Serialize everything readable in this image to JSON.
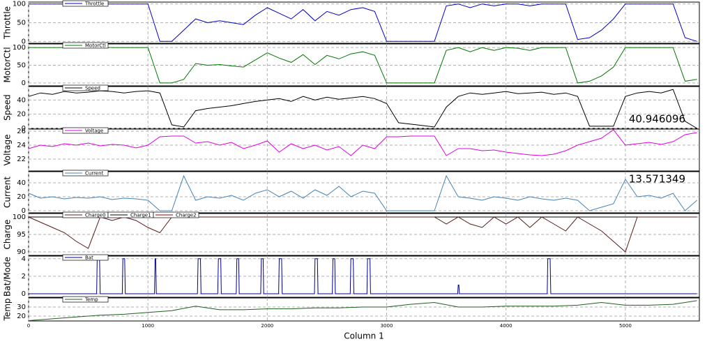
{
  "chart_data": [
    {
      "type": "line",
      "ylabel": "Throttle",
      "xlim": [
        0,
        5620
      ],
      "xticks": [
        0,
        1000,
        2000,
        3000,
        4000,
        5000
      ],
      "ylim": [
        -5,
        105
      ],
      "yticks": [
        0,
        50,
        100
      ],
      "grid": true,
      "x": [
        0,
        100,
        200,
        300,
        400,
        500,
        600,
        700,
        800,
        900,
        1000,
        1100,
        1200,
        1300,
        1400,
        1500,
        1600,
        1700,
        1800,
        1900,
        2000,
        2100,
        2200,
        2300,
        2400,
        2500,
        2600,
        2700,
        2800,
        2900,
        3000,
        3100,
        3200,
        3300,
        3400,
        3500,
        3600,
        3700,
        3800,
        3900,
        4000,
        4100,
        4200,
        4300,
        4400,
        4500,
        4600,
        4700,
        4800,
        4900,
        5000,
        5100,
        5200,
        5300,
        5400,
        5500,
        5600
      ],
      "series": [
        {
          "name": "Throttle",
          "color": "#0000cc",
          "values": [
            100,
            100,
            100,
            100,
            100,
            100,
            100,
            100,
            100,
            100,
            100,
            0,
            0,
            30,
            60,
            50,
            55,
            50,
            45,
            70,
            90,
            75,
            60,
            85,
            55,
            80,
            70,
            85,
            90,
            80,
            0,
            0,
            0,
            0,
            0,
            95,
            100,
            90,
            100,
            95,
            100,
            100,
            95,
            100,
            100,
            100,
            5,
            10,
            30,
            60,
            100,
            100,
            100,
            100,
            100,
            10,
            0
          ]
        }
      ]
    },
    {
      "type": "line",
      "ylabel": "MotorCtl",
      "xlim": [
        0,
        5620
      ],
      "xticks": [
        0,
        1000,
        2000,
        3000,
        4000,
        5000
      ],
      "ylim": [
        -8,
        110
      ],
      "yticks": [
        0,
        50,
        100
      ],
      "grid": true,
      "x": [
        0,
        100,
        200,
        300,
        400,
        500,
        600,
        700,
        800,
        900,
        1000,
        1100,
        1200,
        1300,
        1400,
        1500,
        1600,
        1700,
        1800,
        1900,
        2000,
        2100,
        2200,
        2300,
        2400,
        2500,
        2600,
        2700,
        2800,
        2900,
        3000,
        3100,
        3200,
        3300,
        3400,
        3500,
        3600,
        3700,
        3800,
        3900,
        4000,
        4100,
        4200,
        4300,
        4400,
        4500,
        4600,
        4700,
        4800,
        4900,
        5000,
        5100,
        5200,
        5300,
        5400,
        5500,
        5600
      ],
      "series": [
        {
          "name": "MotorCtl",
          "color": "#007700",
          "values": [
            100,
            100,
            100,
            100,
            100,
            100,
            100,
            100,
            100,
            100,
            100,
            0,
            0,
            10,
            55,
            50,
            52,
            48,
            45,
            65,
            85,
            70,
            58,
            80,
            52,
            78,
            68,
            82,
            88,
            78,
            0,
            0,
            0,
            0,
            0,
            92,
            100,
            88,
            100,
            92,
            100,
            98,
            92,
            100,
            100,
            100,
            0,
            5,
            20,
            45,
            100,
            100,
            100,
            100,
            100,
            5,
            10
          ]
        }
      ]
    },
    {
      "type": "line",
      "ylabel": "Speed",
      "xlim": [
        0,
        5620
      ],
      "xticks": [
        0,
        1000,
        2000,
        3000,
        4000,
        5000
      ],
      "ylim": [
        0,
        59
      ],
      "yticks": [
        0,
        20,
        40
      ],
      "grid": true,
      "annotation": "40.946096",
      "x": [
        0,
        100,
        200,
        300,
        400,
        500,
        600,
        700,
        800,
        900,
        1000,
        1100,
        1200,
        1300,
        1400,
        1500,
        1600,
        1700,
        1800,
        1900,
        2000,
        2100,
        2200,
        2300,
        2400,
        2500,
        2600,
        2700,
        2800,
        2900,
        3000,
        3100,
        3200,
        3300,
        3400,
        3500,
        3600,
        3700,
        3800,
        3900,
        4000,
        4100,
        4200,
        4300,
        4400,
        4500,
        4600,
        4700,
        4800,
        4900,
        5000,
        5100,
        5200,
        5300,
        5400,
        5500,
        5600
      ],
      "series": [
        {
          "name": "Speed",
          "color": "#000000",
          "values": [
            45,
            50,
            48,
            52,
            50,
            51,
            53,
            52,
            50,
            52,
            53,
            50,
            5,
            2,
            25,
            28,
            30,
            32,
            35,
            38,
            40,
            42,
            38,
            45,
            40,
            44,
            41,
            43,
            45,
            42,
            35,
            8,
            6,
            4,
            2,
            30,
            45,
            50,
            48,
            50,
            52,
            49,
            50,
            51,
            48,
            50,
            45,
            3,
            3,
            3,
            45,
            50,
            52,
            50,
            55,
            10,
            0
          ]
        }
      ]
    },
    {
      "type": "line",
      "ylabel": "Voltage",
      "xlim": [
        0,
        5620
      ],
      "xticks": [
        0,
        1000,
        2000,
        3000,
        4000,
        5000
      ],
      "ylim": [
        20.3,
        26.3
      ],
      "yticks": [
        22,
        24,
        26
      ],
      "grid": true,
      "x": [
        0,
        100,
        200,
        300,
        400,
        500,
        600,
        700,
        800,
        900,
        1000,
        1100,
        1200,
        1300,
        1400,
        1500,
        1600,
        1700,
        1800,
        1900,
        2000,
        2100,
        2200,
        2300,
        2400,
        2500,
        2600,
        2700,
        2800,
        2900,
        3000,
        3100,
        3200,
        3300,
        3400,
        3500,
        3600,
        3700,
        3800,
        3900,
        4000,
        4100,
        4200,
        4300,
        4400,
        4500,
        4600,
        4700,
        4800,
        4900,
        5000,
        5100,
        5200,
        5300,
        5400,
        5500,
        5600
      ],
      "series": [
        {
          "name": "Voltage",
          "color": "#e000e0",
          "values": [
            23.5,
            24,
            23.8,
            24.2,
            24,
            24.3,
            23.9,
            24.1,
            24,
            23.6,
            24,
            25.2,
            25.3,
            25.3,
            24.3,
            24.5,
            24,
            24.4,
            23.5,
            24,
            24.6,
            23,
            24.2,
            23.5,
            24,
            23.3,
            23.8,
            22.5,
            24,
            23.5,
            25.2,
            25.2,
            25.3,
            25.3,
            25.3,
            22.5,
            23.5,
            23.5,
            23.2,
            23.3,
            23,
            22.8,
            22.6,
            22.5,
            22.7,
            23.2,
            24,
            24.5,
            25,
            26.2,
            24,
            24.2,
            24.4,
            24.1,
            24.5,
            25.5,
            25.8
          ]
        }
      ]
    },
    {
      "type": "line",
      "ylabel": "Current",
      "xlim": [
        0,
        5620
      ],
      "xticks": [
        0,
        1000,
        2000,
        3000,
        4000,
        5000
      ],
      "ylim": [
        -3,
        56
      ],
      "yticks": [
        0,
        20,
        40
      ],
      "grid": true,
      "annotation": "13.571349",
      "x": [
        0,
        100,
        200,
        300,
        400,
        500,
        600,
        700,
        800,
        900,
        1000,
        1100,
        1200,
        1300,
        1400,
        1500,
        1600,
        1700,
        1800,
        1900,
        2000,
        2100,
        2200,
        2300,
        2400,
        2500,
        2600,
        2700,
        2800,
        2900,
        3000,
        3100,
        3200,
        3300,
        3400,
        3500,
        3600,
        3700,
        3800,
        3900,
        4000,
        4100,
        4200,
        4300,
        4400,
        4500,
        4600,
        4700,
        4800,
        4900,
        5000,
        5100,
        5200,
        5300,
        5400,
        5500,
        5600
      ],
      "series": [
        {
          "name": "Current",
          "color": "#4682b4",
          "values": [
            25,
            18,
            20,
            17,
            19,
            18,
            20,
            16,
            18,
            17,
            15,
            0,
            0,
            50,
            15,
            20,
            18,
            22,
            15,
            25,
            30,
            20,
            28,
            18,
            30,
            22,
            35,
            20,
            28,
            25,
            0,
            0,
            0,
            0,
            0,
            50,
            20,
            18,
            15,
            20,
            18,
            15,
            20,
            17,
            15,
            18,
            15,
            0,
            5,
            10,
            45,
            20,
            22,
            18,
            25,
            0,
            15
          ]
        }
      ]
    },
    {
      "type": "line",
      "ylabel": "Charge",
      "xlim": [
        0,
        5620
      ],
      "xticks": [
        0,
        1000,
        2000,
        3000,
        4000,
        5000
      ],
      "ylim": [
        89,
        101
      ],
      "yticks": [
        90,
        95,
        100
      ],
      "grid": true,
      "x": [
        0,
        100,
        200,
        300,
        400,
        500,
        600,
        700,
        800,
        900,
        1000,
        1100,
        1200,
        1300,
        1400,
        1500,
        1600,
        1700,
        1800,
        1900,
        2000,
        2100,
        2200,
        2300,
        2400,
        2500,
        2600,
        2700,
        2800,
        2900,
        3000,
        3100,
        3200,
        3300,
        3400,
        3500,
        3600,
        3700,
        3800,
        3900,
        4000,
        4100,
        4200,
        4300,
        4400,
        4500,
        4600,
        4700,
        4800,
        4900,
        5000,
        5100,
        5200,
        5300,
        5400,
        5500,
        5600
      ],
      "series": [
        {
          "name": "Charge0",
          "color": "#5a1a1a",
          "values": [
            100,
            98.5,
            97,
            95.5,
            93,
            91,
            100,
            99,
            100,
            99,
            97,
            95.5,
            100,
            100,
            100,
            100,
            100,
            100,
            100,
            100,
            100,
            100,
            100,
            100,
            100,
            100,
            100,
            100,
            100,
            100,
            100,
            100,
            100,
            100,
            100,
            98,
            100,
            98,
            97,
            100,
            98,
            100,
            97,
            100,
            98,
            96,
            100,
            98,
            96,
            93,
            90,
            100,
            100,
            100,
            100,
            100,
            100
          ]
        },
        {
          "name": "Charge1",
          "color": "#000000",
          "values": [
            100,
            100,
            100,
            100,
            100,
            100,
            100,
            100,
            100,
            100,
            100,
            100,
            100,
            100,
            100,
            100,
            100,
            100,
            100,
            100,
            100,
            100,
            100,
            100,
            100,
            100,
            100,
            100,
            100,
            100,
            100,
            100,
            100,
            100,
            100,
            100,
            100,
            100,
            100,
            100,
            100,
            100,
            100,
            100,
            100,
            100,
            100,
            100,
            100,
            100,
            100,
            100,
            100,
            100,
            100,
            100,
            100
          ]
        },
        {
          "name": "Charge2",
          "color": "#8b0000",
          "values": [
            100,
            100,
            100,
            100,
            100,
            100,
            100,
            100,
            100,
            100,
            100,
            100,
            100,
            100,
            100,
            100,
            100,
            100,
            100,
            100,
            100,
            100,
            100,
            100,
            100,
            100,
            100,
            100,
            100,
            100,
            100,
            100,
            100,
            100,
            100,
            100,
            100,
            100,
            100,
            100,
            100,
            100,
            100,
            100,
            100,
            100,
            100,
            100,
            100,
            100,
            100,
            100,
            100,
            100,
            100,
            100,
            100
          ]
        }
      ]
    },
    {
      "type": "line",
      "ylabel": "Bat/Mode",
      "xlim": [
        0,
        5620
      ],
      "xticks": [
        0,
        1000,
        2000,
        3000,
        4000,
        5000
      ],
      "ylim": [
        -0.4,
        4.3
      ],
      "yticks": [
        0,
        2,
        4
      ],
      "grid": true,
      "x": [
        0,
        570,
        575,
        595,
        600,
        785,
        790,
        805,
        810,
        1055,
        1060,
        1065,
        1070,
        1415,
        1420,
        1440,
        1445,
        1585,
        1590,
        1610,
        1615,
        1740,
        1745,
        1760,
        1765,
        1945,
        1950,
        1965,
        1970,
        2095,
        2100,
        2120,
        2125,
        2395,
        2400,
        2420,
        2425,
        2545,
        2550,
        2565,
        2570,
        2695,
        2700,
        2720,
        2725,
        2835,
        2840,
        2860,
        2865,
        3595,
        3600,
        3605,
        3610,
        4345,
        4350,
        4370,
        4375,
        5600
      ],
      "series": [
        {
          "name": "Bat",
          "color": "#00008b",
          "values": [
            0,
            0,
            4,
            4,
            0,
            0,
            4,
            4,
            0,
            0,
            4,
            4,
            0,
            0,
            4,
            4,
            0,
            0,
            4,
            4,
            0,
            0,
            4,
            4,
            0,
            0,
            4,
            4,
            0,
            0,
            4,
            4,
            0,
            0,
            4,
            4,
            0,
            0,
            4,
            4,
            0,
            0,
            4,
            4,
            0,
            0,
            4,
            4,
            0,
            0,
            1,
            1,
            0,
            0,
            4,
            4,
            0,
            0
          ]
        }
      ]
    },
    {
      "type": "line",
      "ylabel": "Temp",
      "xlabel": "Column 1",
      "xlim": [
        0,
        5620
      ],
      "xticks": [
        0,
        1000,
        2000,
        3000,
        4000,
        5000
      ],
      "ylim": [
        14.6,
        40
      ],
      "yticks": [
        20,
        30
      ],
      "grid": true,
      "x": [
        0,
        200,
        400,
        600,
        800,
        1000,
        1200,
        1400,
        1600,
        1800,
        2000,
        2200,
        2400,
        2600,
        2800,
        3000,
        3200,
        3400,
        3600,
        3800,
        4000,
        4200,
        4400,
        4600,
        4800,
        5000,
        5200,
        5400,
        5600
      ],
      "series": [
        {
          "name": "Temp",
          "color": "#1f5f1f",
          "values": [
            15,
            17,
            19,
            21,
            22,
            24,
            26,
            31,
            27,
            27,
            28,
            28,
            29,
            29,
            30,
            30,
            33,
            35,
            30,
            30,
            31,
            31,
            31,
            32,
            35,
            32,
            32,
            33,
            37
          ]
        }
      ]
    }
  ]
}
